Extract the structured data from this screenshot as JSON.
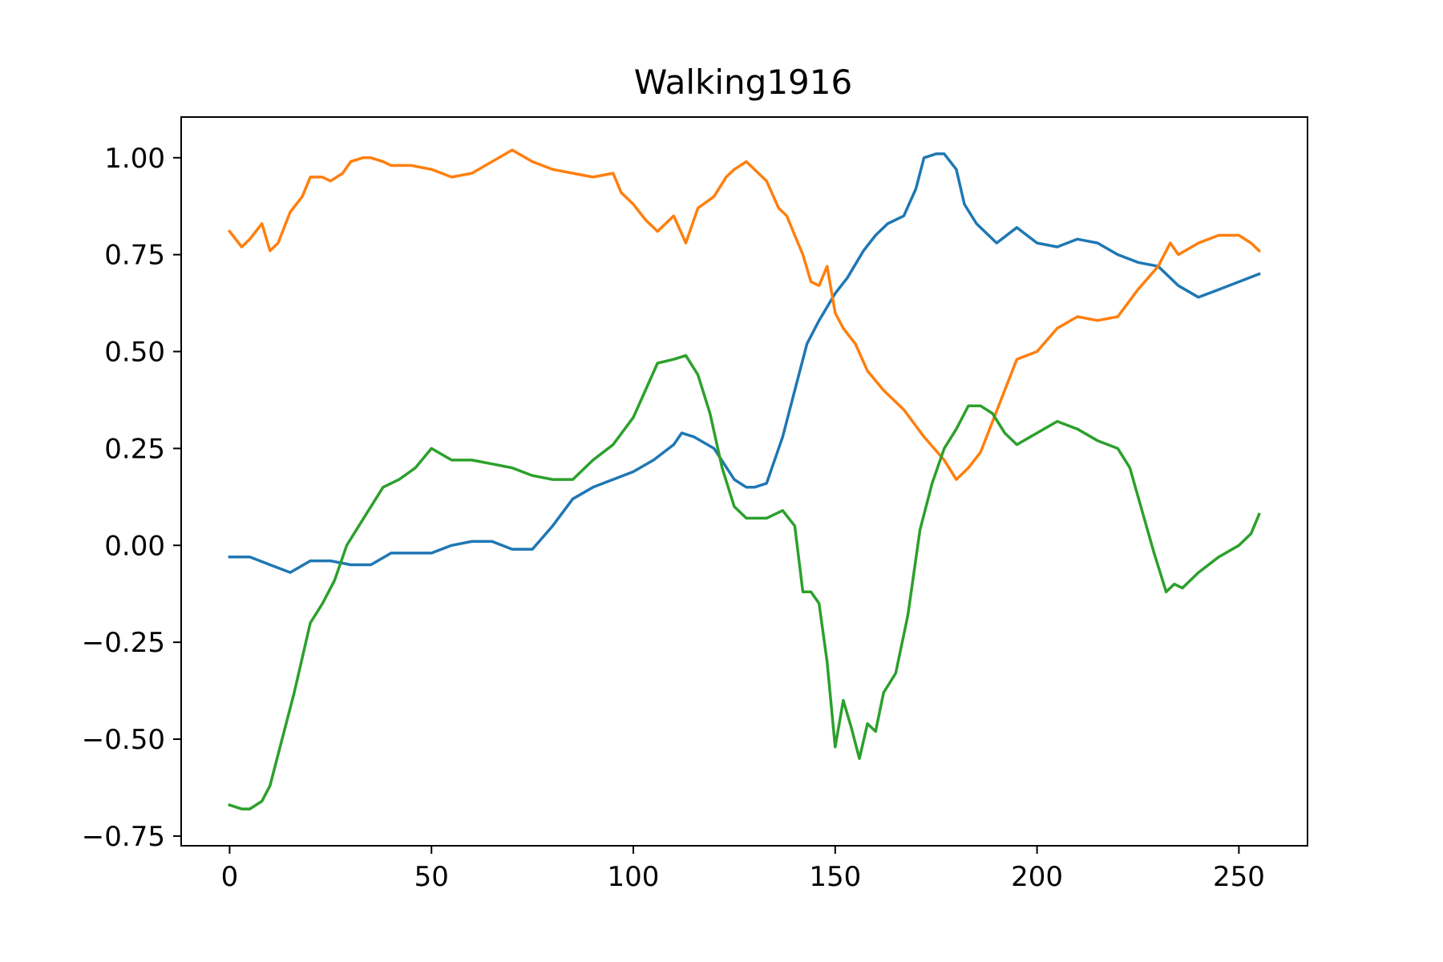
{
  "chart_data": {
    "type": "line",
    "title": "Walking1916",
    "xlabel": "",
    "ylabel": "",
    "xlim": [
      -12,
      267
    ],
    "ylim": [
      -0.775,
      1.105
    ],
    "xticks": [
      0,
      50,
      100,
      150,
      200,
      250
    ],
    "xtick_labels": [
      "0",
      "50",
      "100",
      "150",
      "200",
      "250"
    ],
    "yticks": [
      -0.75,
      -0.5,
      -0.25,
      0.0,
      0.25,
      0.5,
      0.75,
      1.0
    ],
    "ytick_labels": [
      "−0.75",
      "−0.50",
      "−0.25",
      "0.00",
      "0.25",
      "0.50",
      "0.75",
      "1.00"
    ],
    "grid": false,
    "series": [
      {
        "color": "#1f77b4",
        "x": [
          0,
          5,
          10,
          15,
          20,
          25,
          30,
          35,
          40,
          45,
          50,
          55,
          60,
          65,
          70,
          75,
          80,
          85,
          90,
          95,
          100,
          105,
          110,
          112,
          115,
          120,
          125,
          128,
          130,
          133,
          137,
          140,
          143,
          146,
          150,
          153,
          157,
          160,
          163,
          167,
          170,
          172,
          175,
          177,
          180,
          182,
          185,
          190,
          195,
          200,
          205,
          210,
          215,
          220,
          225,
          230,
          235,
          240,
          245,
          250,
          255
        ],
        "y": [
          -0.03,
          -0.03,
          -0.05,
          -0.07,
          -0.04,
          -0.04,
          -0.05,
          -0.05,
          -0.02,
          -0.02,
          -0.02,
          0.0,
          0.01,
          0.01,
          -0.01,
          -0.01,
          0.05,
          0.12,
          0.15,
          0.17,
          0.19,
          0.22,
          0.26,
          0.29,
          0.28,
          0.25,
          0.17,
          0.15,
          0.15,
          0.16,
          0.28,
          0.4,
          0.52,
          0.58,
          0.65,
          0.69,
          0.76,
          0.8,
          0.83,
          0.85,
          0.92,
          1.0,
          1.01,
          1.01,
          0.97,
          0.88,
          0.83,
          0.78,
          0.82,
          0.78,
          0.77,
          0.79,
          0.78,
          0.75,
          0.73,
          0.72,
          0.67,
          0.64,
          0.66,
          0.68,
          0.7
        ]
      },
      {
        "color": "#ff7f0e",
        "x": [
          0,
          3,
          5,
          8,
          10,
          12,
          15,
          18,
          20,
          23,
          25,
          28,
          30,
          33,
          35,
          38,
          40,
          45,
          50,
          55,
          60,
          65,
          70,
          75,
          80,
          85,
          90,
          95,
          97,
          100,
          103,
          106,
          110,
          113,
          116,
          120,
          123,
          125,
          128,
          131,
          133,
          136,
          138,
          140,
          142,
          144,
          146,
          148,
          150,
          152,
          155,
          158,
          162,
          167,
          172,
          177,
          180,
          183,
          186,
          189,
          192,
          195,
          200,
          205,
          210,
          215,
          220,
          225,
          230,
          233,
          235,
          240,
          245,
          250,
          253,
          255
        ],
        "y": [
          0.81,
          0.77,
          0.79,
          0.83,
          0.76,
          0.78,
          0.86,
          0.9,
          0.95,
          0.95,
          0.94,
          0.96,
          0.99,
          1.0,
          1.0,
          0.99,
          0.98,
          0.98,
          0.97,
          0.95,
          0.96,
          0.99,
          1.02,
          0.99,
          0.97,
          0.96,
          0.95,
          0.96,
          0.91,
          0.88,
          0.84,
          0.81,
          0.85,
          0.78,
          0.87,
          0.9,
          0.95,
          0.97,
          0.99,
          0.96,
          0.94,
          0.87,
          0.85,
          0.8,
          0.75,
          0.68,
          0.67,
          0.72,
          0.6,
          0.56,
          0.52,
          0.45,
          0.4,
          0.35,
          0.28,
          0.22,
          0.17,
          0.2,
          0.24,
          0.32,
          0.4,
          0.48,
          0.5,
          0.56,
          0.59,
          0.58,
          0.59,
          0.66,
          0.72,
          0.78,
          0.75,
          0.78,
          0.8,
          0.8,
          0.78,
          0.76
        ]
      },
      {
        "color": "#2ca02c",
        "x": [
          0,
          3,
          5,
          8,
          10,
          13,
          16,
          20,
          23,
          26,
          29,
          32,
          35,
          38,
          42,
          46,
          50,
          55,
          60,
          65,
          70,
          75,
          80,
          85,
          90,
          95,
          100,
          103,
          106,
          110,
          113,
          116,
          119,
          122,
          125,
          128,
          130,
          133,
          137,
          140,
          142,
          144,
          146,
          148,
          150,
          152,
          154,
          156,
          158,
          160,
          162,
          165,
          168,
          171,
          174,
          177,
          180,
          183,
          186,
          189,
          192,
          195,
          200,
          205,
          210,
          215,
          220,
          223,
          226,
          229,
          232,
          234,
          236,
          240,
          245,
          250,
          253,
          255
        ],
        "y": [
          -0.67,
          -0.68,
          -0.68,
          -0.66,
          -0.62,
          -0.5,
          -0.38,
          -0.2,
          -0.15,
          -0.09,
          0.0,
          0.05,
          0.1,
          0.15,
          0.17,
          0.2,
          0.25,
          0.22,
          0.22,
          0.21,
          0.2,
          0.18,
          0.17,
          0.17,
          0.22,
          0.26,
          0.33,
          0.4,
          0.47,
          0.48,
          0.49,
          0.44,
          0.34,
          0.2,
          0.1,
          0.07,
          0.07,
          0.07,
          0.09,
          0.05,
          -0.12,
          -0.12,
          -0.15,
          -0.3,
          -0.52,
          -0.4,
          -0.47,
          -0.55,
          -0.46,
          -0.48,
          -0.38,
          -0.33,
          -0.18,
          0.04,
          0.16,
          0.25,
          0.3,
          0.36,
          0.36,
          0.34,
          0.29,
          0.26,
          0.29,
          0.32,
          0.3,
          0.27,
          0.25,
          0.2,
          0.09,
          -0.02,
          -0.12,
          -0.1,
          -0.11,
          -0.07,
          -0.03,
          0.0,
          0.03,
          0.08
        ]
      }
    ]
  }
}
